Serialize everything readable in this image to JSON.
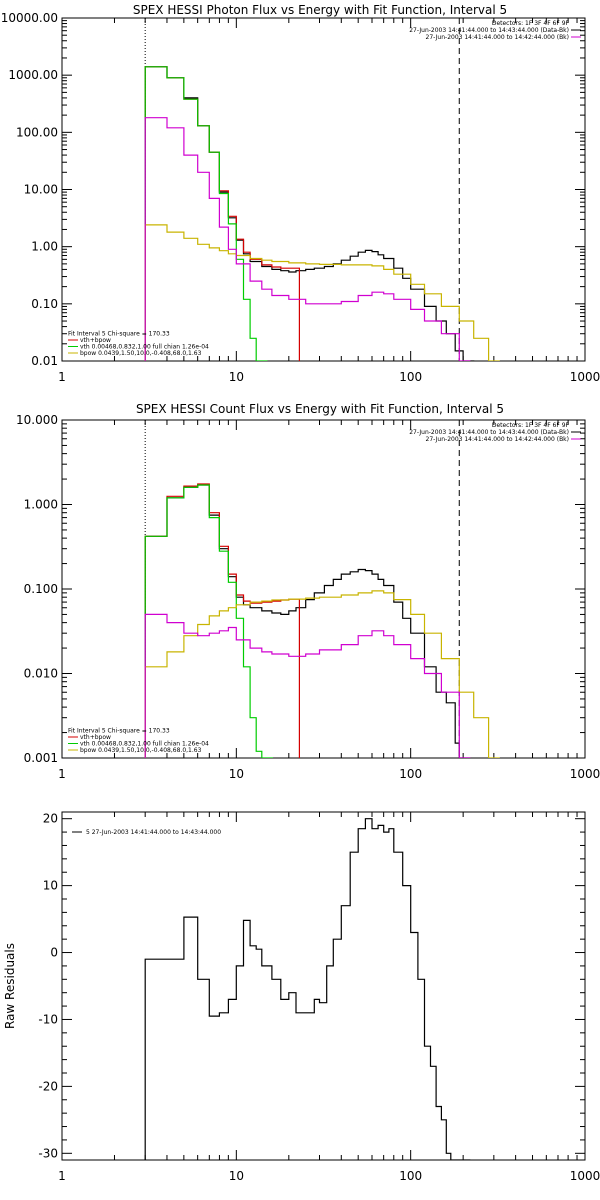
{
  "colors": {
    "background": "#ffffff",
    "axes": "#000000",
    "total": "#000000",
    "model_sum": "#d40000",
    "vth": "#00cc00",
    "bpow": "#c8b400",
    "background_model": "#d000d0"
  },
  "chart_data": [
    {
      "type": "line",
      "title": "SPEX HESSI Photon Flux vs Energy with Fit Function, Interval 5",
      "xscale": "log",
      "yscale": "log",
      "xlim": [
        1,
        1000
      ],
      "ylim": [
        0.01,
        10000
      ],
      "xticks": [
        "1",
        "10",
        "100",
        "1000"
      ],
      "yticks": [
        "0.01",
        "0.10",
        "1.00",
        "10.00",
        "100.00",
        "1000.00",
        "10000.00"
      ],
      "ytick_values": [
        0.01,
        0.1,
        1,
        10,
        100,
        1000,
        10000
      ],
      "vlines": [
        {
          "x": 3,
          "style": "dotted"
        },
        {
          "x": 190,
          "style": "dashed"
        }
      ],
      "legend_top_right": [
        {
          "text": "Detectors: 1F 3F 4F 6F 9F",
          "color": "#000000"
        },
        {
          "text": "27-Jun-2003 14:41:44.000 to 14:43:44.000 (Data-Bk)",
          "color": "#000000"
        },
        {
          "text": "27-Jun-2003 14:41:44.000 to 14:42:44.000 (Bk)",
          "color": "#d000d0"
        }
      ],
      "legend_bottom_left": [
        {
          "text": "Fit Interval 5   Chi-square = 170.33",
          "color": "#000000"
        },
        {
          "text": "vth+bpow",
          "color": "#d40000"
        },
        {
          "text": "vth 0.00468,0.832,1.00  full chian 1.26e-04",
          "color": "#00cc00"
        },
        {
          "text": "bpow 0.0439,1.50,10.0,-0.408,68.0,1.63",
          "color": "#c8b400"
        }
      ],
      "series": [
        {
          "name": "Data-Bk",
          "color": "#000000",
          "x": [
            3,
            4,
            5,
            6,
            7,
            8,
            9,
            10,
            11,
            12,
            14,
            16,
            18,
            20,
            22,
            25,
            28,
            32,
            36,
            40,
            45,
            50,
            55,
            60,
            65,
            70,
            80,
            90,
            100,
            120,
            140,
            160,
            180,
            200
          ],
          "y": [
            1400,
            900,
            400,
            130,
            45,
            9,
            3.2,
            1.3,
            0.75,
            0.55,
            0.45,
            0.4,
            0.38,
            0.36,
            0.38,
            0.4,
            0.42,
            0.45,
            0.5,
            0.58,
            0.68,
            0.8,
            0.86,
            0.82,
            0.72,
            0.62,
            0.42,
            0.28,
            0.18,
            0.09,
            0.05,
            0.03,
            0.015,
            0.01
          ]
        },
        {
          "name": "vth+bpow",
          "color": "#d40000",
          "x": [
            3,
            4,
            5,
            6,
            7,
            8,
            9,
            10,
            11,
            12,
            14,
            16,
            18,
            20
          ],
          "y": [
            1400,
            900,
            380,
            130,
            45,
            9.5,
            3.4,
            1.35,
            0.8,
            0.6,
            0.48,
            0.44,
            0.42,
            0.42
          ]
        },
        {
          "name": "vth",
          "color": "#00cc00",
          "x": [
            3,
            4,
            5,
            6,
            7,
            8,
            9,
            10,
            11,
            12,
            13
          ],
          "y": [
            1400,
            900,
            380,
            130,
            45,
            8.5,
            2.5,
            0.6,
            0.12,
            0.025,
            0.01
          ]
        },
        {
          "name": "bpow",
          "color": "#c8b400",
          "x": [
            3,
            4,
            5,
            6,
            7,
            8,
            9,
            10,
            12,
            14,
            16,
            20,
            25,
            30,
            40,
            50,
            60,
            70,
            80,
            100,
            120,
            150,
            190,
            230,
            280
          ],
          "y": [
            2.4,
            1.8,
            1.4,
            1.1,
            0.95,
            0.85,
            0.75,
            0.7,
            0.62,
            0.58,
            0.55,
            0.52,
            0.5,
            0.49,
            0.48,
            0.48,
            0.46,
            0.4,
            0.33,
            0.22,
            0.15,
            0.09,
            0.05,
            0.025,
            0.01
          ]
        },
        {
          "name": "Bk",
          "color": "#d000d0",
          "x": [
            3,
            4,
            5,
            6,
            7,
            8,
            9,
            10,
            12,
            14,
            16,
            20,
            25,
            30,
            40,
            50,
            60,
            70,
            80,
            100,
            120,
            150,
            190
          ],
          "y": [
            180,
            120,
            40,
            20,
            7,
            2.2,
            0.9,
            0.5,
            0.25,
            0.18,
            0.14,
            0.12,
            0.1,
            0.1,
            0.11,
            0.14,
            0.16,
            0.15,
            0.12,
            0.08,
            0.05,
            0.03,
            0.01
          ]
        }
      ]
    },
    {
      "type": "line",
      "title": "SPEX HESSI Count Flux vs Energy with Fit Function, Interval 5",
      "xscale": "log",
      "yscale": "log",
      "xlim": [
        1,
        1000
      ],
      "ylim": [
        0.001,
        10
      ],
      "xticks": [
        "1",
        "10",
        "100",
        "1000"
      ],
      "yticks": [
        "0.001",
        "0.010",
        "0.100",
        "1.000",
        "10.000"
      ],
      "ytick_values": [
        0.001,
        0.01,
        0.1,
        1,
        10
      ],
      "vlines": [
        {
          "x": 3,
          "style": "dotted"
        },
        {
          "x": 190,
          "style": "dashed"
        }
      ],
      "legend_top_right": [
        {
          "text": "Detectors: 1F 3F 4F 6F 9F",
          "color": "#000000"
        },
        {
          "text": "27-Jun-2003 14:41:44.000 to 14:43:44.000 (Data-Bk)",
          "color": "#000000"
        },
        {
          "text": "27-Jun-2003 14:41:44.000 to 14:42:44.000 (Bk)",
          "color": "#d000d0"
        }
      ],
      "legend_bottom_left": [
        {
          "text": "Fit Interval 5   Chi-square = 170.33",
          "color": "#000000"
        },
        {
          "text": "vth+bpow",
          "color": "#d40000"
        },
        {
          "text": "vth 0.00468,0.832,1.00  full chian 1.26e-04",
          "color": "#00cc00"
        },
        {
          "text": "bpow 0.0439,1.50,10.0,-0.408,68.0,1.63",
          "color": "#c8b400"
        }
      ],
      "series": [
        {
          "name": "Data-Bk",
          "color": "#000000",
          "x": [
            3,
            4,
            5,
            6,
            7,
            8,
            9,
            10,
            11,
            12,
            14,
            16,
            18,
            20,
            22,
            25,
            28,
            32,
            36,
            40,
            45,
            50,
            55,
            60,
            65,
            70,
            80,
            90,
            100,
            120,
            140,
            160,
            180,
            190
          ],
          "y": [
            0.42,
            1.2,
            1.6,
            1.7,
            0.75,
            0.3,
            0.14,
            0.08,
            0.065,
            0.06,
            0.055,
            0.052,
            0.05,
            0.055,
            0.06,
            0.075,
            0.09,
            0.11,
            0.13,
            0.15,
            0.16,
            0.17,
            0.165,
            0.15,
            0.13,
            0.11,
            0.07,
            0.045,
            0.03,
            0.012,
            0.006,
            0.0045,
            0.0015,
            0.001
          ]
        },
        {
          "name": "vth+bpow",
          "color": "#d40000",
          "x": [
            3,
            4,
            5,
            6,
            7,
            8,
            9,
            10,
            11,
            12,
            14,
            16,
            18,
            20
          ],
          "y": [
            0.42,
            1.25,
            1.65,
            1.75,
            0.8,
            0.32,
            0.15,
            0.085,
            0.072,
            0.068,
            0.07,
            0.072,
            0.074,
            0.076
          ]
        },
        {
          "name": "vth",
          "color": "#00cc00",
          "x": [
            3,
            4,
            5,
            6,
            7,
            8,
            9,
            10,
            11,
            12,
            13,
            14
          ],
          "y": [
            0.42,
            1.2,
            1.6,
            1.7,
            0.7,
            0.28,
            0.12,
            0.045,
            0.012,
            0.003,
            0.0012,
            0.001
          ]
        },
        {
          "name": "bpow",
          "color": "#c8b400",
          "x": [
            3,
            4,
            5,
            6,
            7,
            8,
            9,
            10,
            12,
            14,
            16,
            20,
            25,
            30,
            40,
            50,
            60,
            70,
            80,
            100,
            120,
            150,
            190,
            230,
            280
          ],
          "y": [
            0.012,
            0.018,
            0.028,
            0.038,
            0.048,
            0.055,
            0.06,
            0.065,
            0.07,
            0.072,
            0.074,
            0.076,
            0.078,
            0.08,
            0.085,
            0.09,
            0.095,
            0.09,
            0.075,
            0.05,
            0.03,
            0.015,
            0.006,
            0.003,
            0.001
          ]
        },
        {
          "name": "Bk",
          "color": "#d000d0",
          "x": [
            3,
            4,
            5,
            6,
            7,
            8,
            9,
            10,
            12,
            14,
            16,
            20,
            25,
            30,
            40,
            50,
            60,
            70,
            80,
            100,
            120,
            150,
            190
          ],
          "y": [
            0.05,
            0.04,
            0.03,
            0.028,
            0.03,
            0.032,
            0.035,
            0.025,
            0.02,
            0.018,
            0.017,
            0.016,
            0.017,
            0.019,
            0.022,
            0.028,
            0.032,
            0.028,
            0.022,
            0.015,
            0.01,
            0.006,
            0.001
          ]
        }
      ]
    },
    {
      "type": "line",
      "title": "",
      "xscale": "log",
      "yscale": "linear",
      "xlim": [
        1,
        1000
      ],
      "ylim": [
        -31,
        21
      ],
      "xticks": [
        "1",
        "10",
        "100",
        "1000"
      ],
      "yticks": [
        "-30",
        "-20",
        "-10",
        "0",
        "10",
        "20"
      ],
      "ytick_values": [
        -30,
        -20,
        -10,
        0,
        10,
        20
      ],
      "ylabel": "Raw Residuals",
      "legend_top_left": [
        {
          "text": "5  27-Jun-2003 14:41:44.000 to 14:43:44.000",
          "color": "#000000"
        }
      ],
      "series": [
        {
          "name": "residuals",
          "color": "#000000",
          "x": [
            3,
            4,
            5,
            6,
            7,
            8,
            9,
            10,
            11,
            12,
            13,
            14,
            16,
            18,
            20,
            22,
            25,
            28,
            30,
            33,
            36,
            40,
            45,
            50,
            55,
            60,
            65,
            70,
            75,
            80,
            90,
            100,
            110,
            120,
            130,
            140,
            150,
            160,
            170,
            180,
            190
          ],
          "y": [
            -1,
            -1,
            5.3,
            -4,
            -9.5,
            -9,
            -7,
            -2,
            4.8,
            1,
            0.5,
            -2,
            -4,
            -7,
            -6,
            -9,
            -9,
            -7,
            -7.5,
            -2,
            2,
            7,
            15,
            18.5,
            20,
            18.5,
            19,
            18,
            18.5,
            15,
            10,
            3,
            -4,
            -14,
            -17,
            -23,
            -25,
            -30,
            -31,
            -31,
            -31
          ]
        }
      ]
    }
  ]
}
